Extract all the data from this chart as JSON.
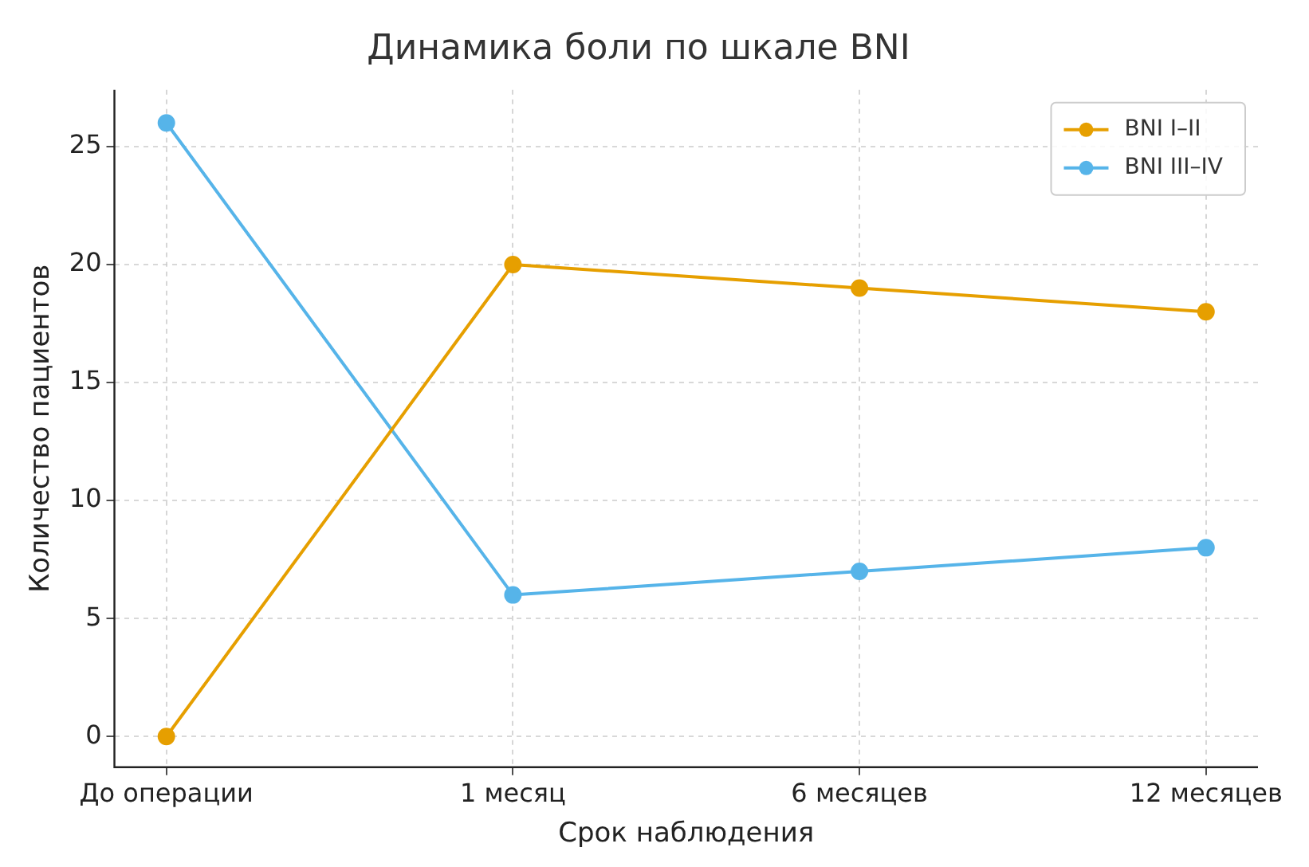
{
  "chart_data": {
    "type": "line",
    "title": "Динамика боли по шкале BNI",
    "xlabel": "Срок наблюдения",
    "ylabel": "Количество пациентов",
    "categories": [
      "До операции",
      "1 месяц",
      "6 месяцев",
      "12 месяцев"
    ],
    "series": [
      {
        "name": "BNI I–II",
        "color": "#e69f00",
        "values": [
          0,
          20,
          19,
          18
        ]
      },
      {
        "name": "BNI III–IV",
        "color": "#56b4e9",
        "values": [
          26,
          6,
          7,
          8
        ]
      }
    ],
    "ylim": [
      -1.3,
      27.4
    ],
    "yticks": [
      0,
      5,
      10,
      15,
      20,
      25
    ],
    "grid": true,
    "legend": "top right",
    "marker": "circle",
    "line_style": "solid"
  }
}
